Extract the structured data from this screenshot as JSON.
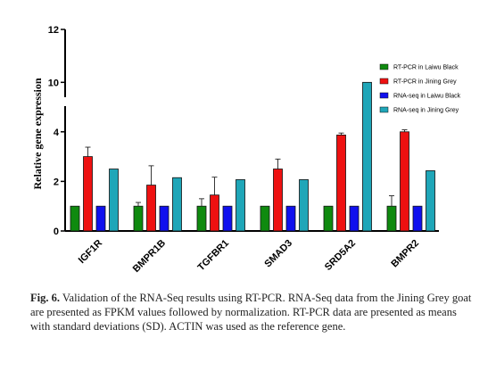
{
  "chart_data": {
    "type": "bar",
    "title": "",
    "ylabel": "Relative gene expression",
    "xlabel": "",
    "categories": [
      "IGF1R",
      "BMPR1B",
      "TGFBR1",
      "SMAD3",
      "SRD5A2",
      "BMPR2"
    ],
    "yticks": [
      0,
      2,
      4,
      10,
      12
    ],
    "axis_break": [
      5,
      9
    ],
    "ylim": [
      0,
      12
    ],
    "legend_position": "right",
    "grid": false,
    "series": [
      {
        "name": "RT-PCR in Laiwu  Black",
        "color": "#0f8a0f",
        "values": [
          1.0,
          1.0,
          1.0,
          1.0,
          1.0,
          1.0
        ],
        "errors": [
          0.0,
          0.15,
          0.3,
          0.0,
          0.0,
          0.42
        ]
      },
      {
        "name": "RT-PCR in Jining Grey",
        "color": "#ee1111",
        "values": [
          3.0,
          1.85,
          1.45,
          2.5,
          3.87,
          4.0
        ],
        "errors": [
          0.38,
          0.78,
          0.72,
          0.4,
          0.08,
          0.08
        ]
      },
      {
        "name": "RNA-seq in Laiwu  Black",
        "color": "#1010ee",
        "values": [
          1.0,
          1.0,
          1.0,
          1.0,
          1.0,
          1.0
        ],
        "errors": [
          0,
          0,
          0,
          0,
          0,
          0
        ]
      },
      {
        "name": "RNA-seq in Jining Grey",
        "color": "#1fa6b8",
        "values": [
          2.5,
          2.15,
          2.07,
          2.07,
          10.0,
          2.43
        ],
        "errors": [
          0,
          0,
          0,
          0,
          0,
          0
        ]
      }
    ]
  },
  "caption": {
    "label": "Fig. 6.",
    "text": "Validation of the RNA-Seq results using RT-PCR. RNA-Seq data from the Jining Grey goat are presented as FPKM values followed by normalization. RT-PCR data are presented as means with standard deviations (SD). ACTIN was used as the reference gene."
  }
}
